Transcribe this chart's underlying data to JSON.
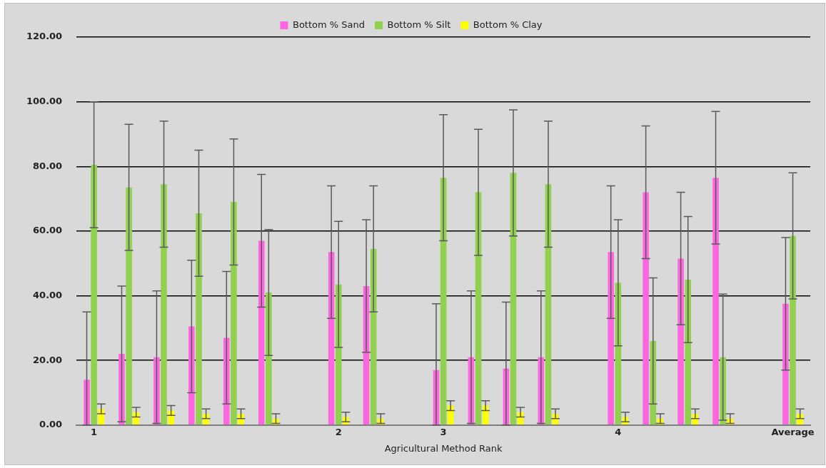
{
  "chart_data": {
    "type": "bar",
    "xlabel": "Agricultural Method Rank",
    "categories": [
      "1",
      null,
      null,
      null,
      null,
      null,
      null,
      "2",
      null,
      null,
      "3",
      null,
      null,
      null,
      null,
      "4",
      null,
      null,
      null,
      null,
      "Average"
    ],
    "series": [
      {
        "name": "Bottom % Sand",
        "color": "#ff66e0",
        "values": [
          14,
          22,
          21,
          30.5,
          27,
          57,
          null,
          53.5,
          43,
          null,
          17,
          21,
          17.5,
          21,
          null,
          53.5,
          72,
          51.5,
          76.5,
          null,
          37.5
        ],
        "errors": [
          [
            0,
            35
          ],
          21,
          20.5,
          20.5,
          20.5,
          20.5,
          null,
          20.5,
          20.5,
          null,
          [
            0,
            37.5
          ],
          20.5,
          [
            0,
            38
          ],
          20.5,
          null,
          20.5,
          20.5,
          20.5,
          20.5,
          null,
          20.5
        ]
      },
      {
        "name": "Bottom % Silt",
        "color": "#92d050",
        "values": [
          80.5,
          73.5,
          74.5,
          65.5,
          69,
          41,
          null,
          43.5,
          54.5,
          null,
          76.5,
          72,
          78,
          74.5,
          null,
          44,
          26,
          45,
          21,
          null,
          58.5
        ],
        "errors": [
          19.5,
          19.5,
          19.5,
          19.5,
          19.5,
          19.5,
          null,
          19.5,
          19.5,
          null,
          19.5,
          19.5,
          19.5,
          19.5,
          null,
          19.5,
          19.5,
          19.5,
          19.5,
          null,
          19.5
        ]
      },
      {
        "name": "Bottom % Clay",
        "color": "#ffff00",
        "values": [
          5,
          4,
          4.5,
          3.5,
          3.5,
          2,
          null,
          2.5,
          2,
          null,
          6,
          6,
          4,
          3.5,
          null,
          2.5,
          2,
          3.5,
          2,
          null,
          3.5
        ],
        "errors": [
          1.5,
          1.5,
          1.5,
          1.5,
          1.5,
          1.5,
          null,
          1.5,
          1.5,
          null,
          1.5,
          1.5,
          1.5,
          1.5,
          null,
          1.5,
          1.5,
          1.5,
          1.5,
          null,
          1.5
        ]
      }
    ],
    "ylim": [
      0,
      120
    ],
    "yticks": [
      {
        "value": 0,
        "label": "0.00"
      },
      {
        "value": 20,
        "label": "20.00"
      },
      {
        "value": 40,
        "label": "40.00"
      },
      {
        "value": 60,
        "label": "60.00"
      },
      {
        "value": 80,
        "label": "80.00"
      },
      {
        "value": 100,
        "label": "100.00"
      },
      {
        "value": 120,
        "label": "120.00"
      }
    ],
    "grid": "y",
    "legend": "top"
  }
}
